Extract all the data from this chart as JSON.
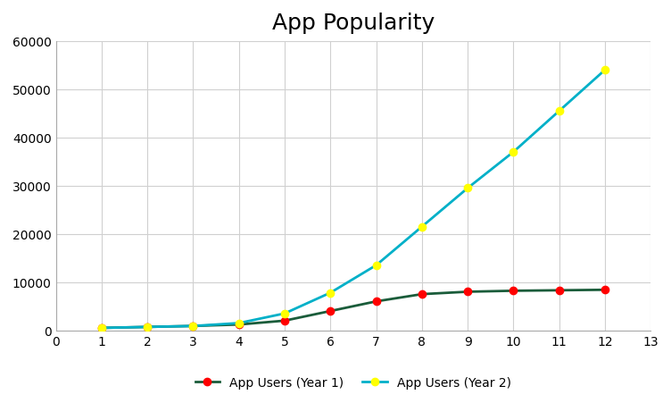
{
  "title": "App Popularity",
  "x": [
    1,
    2,
    3,
    4,
    5,
    6,
    7,
    8,
    9,
    10,
    11,
    12
  ],
  "year1_values": [
    500,
    700,
    900,
    1200,
    2000,
    4000,
    6000,
    7500,
    8000,
    8200,
    8300,
    8400
  ],
  "year2_values": [
    500,
    700,
    900,
    1500,
    3500,
    7800,
    13500,
    21500,
    29500,
    37000,
    45500,
    54000
  ],
  "year1_color": "#1a5c3a",
  "year2_color": "#00b0c8",
  "year1_marker_color": "#ff0000",
  "year2_marker_color": "#ffff00",
  "year1_label": "App Users (Year 1)",
  "year2_label": "App Users (Year 2)",
  "xlim": [
    0,
    13
  ],
  "ylim": [
    0,
    60000
  ],
  "xticks": [
    0,
    1,
    2,
    3,
    4,
    5,
    6,
    7,
    8,
    9,
    10,
    11,
    12,
    13
  ],
  "yticks": [
    0,
    10000,
    20000,
    30000,
    40000,
    50000,
    60000
  ],
  "ytick_labels": [
    "0",
    "10000",
    "20000",
    "30000",
    "40000",
    "50000",
    "60000"
  ],
  "grid_color": "#d0d0d0",
  "background_color": "#ffffff",
  "title_fontsize": 18,
  "legend_fontsize": 10,
  "tick_fontsize": 10,
  "line_width": 2.0,
  "marker_size": 6
}
